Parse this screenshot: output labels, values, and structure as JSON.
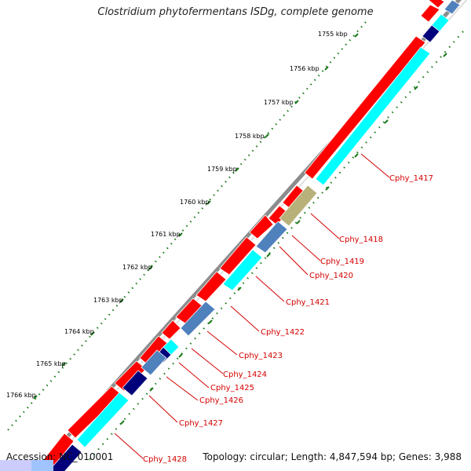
{
  "title": "Clostridium phytofermentans ISDg, complete genome",
  "footer": {
    "accession": "Accession: NC_010001",
    "info": "Topology: circular; Length: 4,847,594 bp; Genes: 3,988"
  },
  "kbp_labels": [
    "1755 kbp",
    "1756 kbp",
    "1757 kbp",
    "1758 kbp",
    "1759 kbp",
    "1760 kbp",
    "1761 kbp",
    "1762 kbp",
    "1763 kbp",
    "1764 kbp",
    "1765 kbp",
    "1766 kbp"
  ],
  "gene_labels": [
    "Cphy_1417",
    "Cphy_1418",
    "Cphy_1419",
    "Cphy_1420",
    "Cphy_1421",
    "Cphy_1422",
    "Cphy_1423",
    "Cphy_1424",
    "Cphy_1425",
    "Cphy_1426",
    "Cphy_1427",
    "Cphy_1428"
  ],
  "colors": {
    "backbone": "#8c8c8c",
    "forward_gene": "#ff0000",
    "cds": "#00ffff",
    "feature_blue": "#4f81bd",
    "feature_navy": "#00007a",
    "feature_olive": "#b8b27a",
    "tick": "#1a7a1a",
    "label": "#d40000"
  }
}
